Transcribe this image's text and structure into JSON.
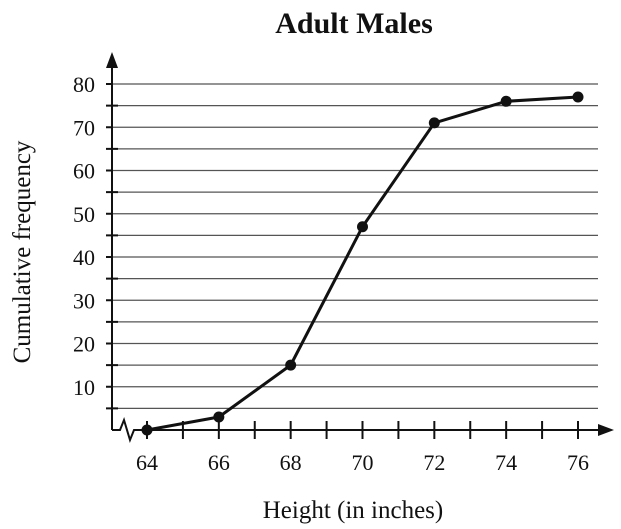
{
  "chart_data": {
    "type": "line",
    "title": "Adult Males",
    "xlabel": "Height (in inches)",
    "ylabel": "Cumulative frequency",
    "x": [
      64,
      66,
      68,
      70,
      72,
      74,
      76
    ],
    "series": [
      {
        "values": [
          0,
          3,
          15,
          47,
          71,
          76,
          77
        ]
      }
    ],
    "xlim": [
      63,
      76.5
    ],
    "ylim": [
      0,
      80
    ],
    "x_ticks": [
      "64",
      "66",
      "68",
      "70",
      "72",
      "74",
      "76"
    ],
    "y_ticks": [
      "10",
      "20",
      "30",
      "40",
      "50",
      "60",
      "70",
      "80"
    ],
    "grid": "horizontal",
    "colors": {
      "line": "#111111",
      "grid": "#555555"
    }
  }
}
